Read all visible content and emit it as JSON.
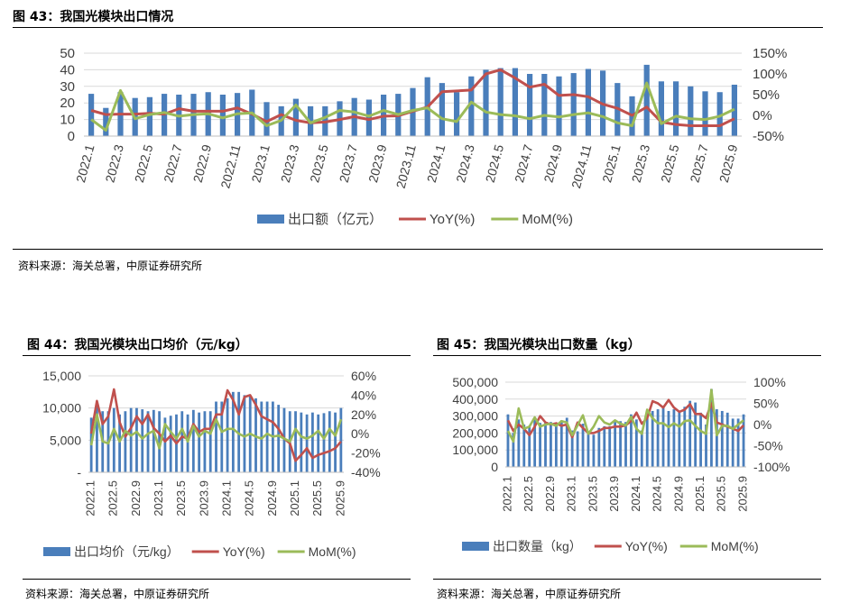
{
  "chart_data": [
    {
      "type": "bar",
      "title": "图 43：我国光模块出口情况",
      "source": "资料来源：海关总署，中原证券研究所",
      "categories": [
        "2022.1",
        "2022.2",
        "2022.3",
        "2022.4",
        "2022.5",
        "2022.6",
        "2022.7",
        "2022.8",
        "2022.9",
        "2022.10",
        "2022.11",
        "2022.12",
        "2023.1",
        "2023.2",
        "2023.3",
        "2023.4",
        "2023.5",
        "2023.6",
        "2023.7",
        "2023.8",
        "2023.9",
        "2023.10",
        "2023.11",
        "2023.12",
        "2024.1",
        "2024.2",
        "2024.3",
        "2024.4",
        "2024.5",
        "2024.6",
        "2024.7",
        "2024.8",
        "2024.9",
        "2024.10",
        "2024.11",
        "2024.12",
        "2025.1",
        "2025.2",
        "2025.3",
        "2025.4",
        "2025.5",
        "2025.6",
        "2025.7",
        "2025.8",
        "2025.9"
      ],
      "tick_labels": [
        "2022.1",
        "2022.3",
        "2022.5",
        "2022.7",
        "2022.9",
        "2022.11",
        "2023.1",
        "2023.3",
        "2023.5",
        "2023.7",
        "2023.9",
        "2023.11",
        "2024.1",
        "2024.3",
        "2024.5",
        "2024.7",
        "2024.9",
        "2024.11",
        "2025.1",
        "2025.3",
        "2025.5",
        "2025.7",
        "2025.9"
      ],
      "series": [
        {
          "name": "出口额（亿元）",
          "type": "bar",
          "axis": "left",
          "color": "#4a7ebb",
          "values": [
            25.5,
            17,
            26.5,
            23,
            23.5,
            25.5,
            25,
            25.5,
            26.5,
            25,
            26,
            28,
            20.5,
            18,
            22.5,
            18,
            18,
            21,
            23,
            22,
            25,
            25.5,
            29,
            35.5,
            32,
            26.5,
            36,
            40,
            41,
            41,
            37.5,
            37.5,
            36,
            38,
            40.5,
            39.5,
            32,
            24,
            43,
            33,
            33,
            30,
            27,
            26.5,
            31
          ]
        },
        {
          "name": "YoY(%)",
          "type": "line",
          "axis": "right",
          "color": "#c0504d",
          "values": [
            12,
            2,
            3,
            3,
            5,
            3,
            16,
            10,
            10,
            10,
            18,
            3,
            -15,
            2,
            -12,
            -18,
            -16,
            -10,
            -3,
            -10,
            -2,
            -1,
            10,
            20,
            57,
            59,
            61,
            100,
            110,
            90,
            68,
            75,
            48,
            50,
            45,
            27,
            17,
            0,
            20,
            -16,
            -22,
            -25,
            -25,
            -25,
            -8
          ]
        },
        {
          "name": "MoM(%)",
          "type": "line",
          "axis": "right",
          "color": "#9bbb59",
          "values": [
            -10,
            -36,
            60,
            -8,
            2,
            7,
            -2,
            2,
            4,
            -6,
            4,
            6,
            -25,
            -12,
            25,
            -18,
            -5,
            12,
            8,
            -2,
            12,
            2,
            12,
            18,
            -8,
            -15,
            32,
            8,
            2,
            -1,
            -8,
            0,
            -4,
            2,
            6,
            -3,
            -18,
            -25,
            78,
            -20,
            -2,
            -8,
            -10,
            -2,
            15
          ]
        }
      ],
      "ylim_left": [
        0,
        50
      ],
      "yticks_left": [
        "0",
        "10",
        "20",
        "30",
        "40",
        "50"
      ],
      "ylim_right": [
        -50,
        150
      ],
      "yticks_right": [
        "-50%",
        "0%",
        "50%",
        "100%",
        "150%"
      ],
      "legend": "bottom",
      "grid": true
    },
    {
      "type": "bar",
      "title": "图 44：我国光模块出口均价（元/kg）",
      "source": "资料来源：海关总署，中原证券研究所",
      "categories": [
        "2022.1",
        "2022.2",
        "2022.3",
        "2022.4",
        "2022.5",
        "2022.6",
        "2022.7",
        "2022.8",
        "2022.9",
        "2022.10",
        "2022.11",
        "2022.12",
        "2023.1",
        "2023.2",
        "2023.3",
        "2023.4",
        "2023.5",
        "2023.6",
        "2023.7",
        "2023.8",
        "2023.9",
        "2023.10",
        "2023.11",
        "2023.12",
        "2024.1",
        "2024.2",
        "2024.3",
        "2024.4",
        "2024.5",
        "2024.6",
        "2024.7",
        "2024.8",
        "2024.9",
        "2024.10",
        "2024.11",
        "2024.12",
        "2025.1",
        "2025.2",
        "2025.3",
        "2025.4",
        "2025.5",
        "2025.6",
        "2025.7",
        "2025.8",
        "2025.9"
      ],
      "tick_labels": [
        "2022.1",
        "2022.5",
        "2022.9",
        "2023.1",
        "2023.5",
        "2023.9",
        "2024.1",
        "2024.5",
        "2024.9",
        "2025.1",
        "2025.5",
        "2025.9"
      ],
      "series": [
        {
          "name": "出口均价（元/kg）",
          "type": "bar",
          "axis": "left",
          "color": "#4a7ebb",
          "values": [
            8500,
            10500,
            9500,
            9500,
            10000,
            9000,
            9500,
            10000,
            10000,
            9800,
            9500,
            9700,
            9500,
            8500,
            8800,
            9000,
            9500,
            9000,
            9700,
            9300,
            9500,
            9500,
            11000,
            11000,
            11500,
            12500,
            12500,
            12000,
            12000,
            11500,
            11000,
            11000,
            11000,
            10500,
            10000,
            9500,
            9500,
            9300,
            9000,
            9300,
            9000,
            9200,
            9500,
            9300,
            10000
          ]
        },
        {
          "name": "YoY(%)",
          "type": "line",
          "axis": "right",
          "color": "#c0504d",
          "values": [
            0,
            34,
            10,
            18,
            46,
            12,
            -3,
            6,
            18,
            10,
            20,
            6,
            0,
            -8,
            -2,
            -10,
            -3,
            -5,
            10,
            2,
            5,
            5,
            20,
            20,
            45,
            35,
            20,
            38,
            40,
            30,
            18,
            15,
            12,
            5,
            -5,
            -10,
            -28,
            -22,
            -15,
            -25,
            -22,
            -20,
            -18,
            -15,
            -8
          ]
        },
        {
          "name": "MoM(%)",
          "type": "line",
          "axis": "right",
          "color": "#9bbb59",
          "values": [
            -12,
            20,
            -8,
            -10,
            5,
            -8,
            3,
            -2,
            2,
            -5,
            0,
            3,
            -15,
            10,
            2,
            -5,
            5,
            -8,
            8,
            -3,
            3,
            0,
            15,
            2,
            5,
            5,
            0,
            -3,
            0,
            -3,
            -5,
            0,
            -3,
            -2,
            -5,
            -8,
            5,
            -3,
            -5,
            -2,
            3,
            -5,
            5,
            -2,
            15
          ]
        }
      ],
      "ylim_left": [
        0,
        15000
      ],
      "yticks_left": [
        "-",
        "5,000",
        "10,000",
        "15,000"
      ],
      "ylim_right": [
        -40,
        60
      ],
      "yticks_right": [
        "-40%",
        "-20%",
        "0%",
        "20%",
        "40%",
        "60%"
      ],
      "legend": "bottom",
      "grid": true
    },
    {
      "type": "bar",
      "title": "图 45：我国光模块出口数量（kg）",
      "source": "资料来源：海关总署，中原证券研究所",
      "categories": [
        "2022.1",
        "2022.2",
        "2022.3",
        "2022.4",
        "2022.5",
        "2022.6",
        "2022.7",
        "2022.8",
        "2022.9",
        "2022.10",
        "2022.11",
        "2022.12",
        "2023.1",
        "2023.2",
        "2023.3",
        "2023.4",
        "2023.5",
        "2023.6",
        "2023.7",
        "2023.8",
        "2023.9",
        "2023.10",
        "2023.11",
        "2023.12",
        "2024.1",
        "2024.2",
        "2024.3",
        "2024.4",
        "2024.5",
        "2024.6",
        "2024.7",
        "2024.8",
        "2024.9",
        "2024.10",
        "2024.11",
        "2024.12",
        "2025.1",
        "2025.2",
        "2025.3",
        "2025.4",
        "2025.5",
        "2025.6",
        "2025.7",
        "2025.8",
        "2025.9"
      ],
      "tick_labels": [
        "2022.1",
        "2022.5",
        "2022.9",
        "2023.1",
        "2023.5",
        "2023.9",
        "2024.1",
        "2024.5",
        "2024.9",
        "2025.1",
        "2025.5",
        "2025.9"
      ],
      "series": [
        {
          "name": "出口数量（kg）",
          "type": "bar",
          "axis": "left",
          "color": "#4a7ebb",
          "values": [
            310000,
            200000,
            280000,
            250000,
            240000,
            280000,
            260000,
            260000,
            265000,
            255000,
            275000,
            290000,
            215000,
            210000,
            255000,
            200000,
            190000,
            230000,
            240000,
            240000,
            265000,
            270000,
            265000,
            310000,
            280000,
            215000,
            290000,
            330000,
            340000,
            350000,
            330000,
            340000,
            325000,
            355000,
            390000,
            380000,
            320000,
            250000,
            460000,
            340000,
            330000,
            320000,
            285000,
            285000,
            310000
          ]
        },
        {
          "name": "YoY(%)",
          "type": "line",
          "axis": "right",
          "color": "#c0504d",
          "values": [
            10,
            -15,
            0,
            -10,
            -25,
            -5,
            20,
            5,
            0,
            3,
            -3,
            0,
            -30,
            5,
            -8,
            -20,
            -20,
            -15,
            -8,
            -8,
            -5,
            -5,
            -2,
            8,
            28,
            2,
            15,
            55,
            50,
            40,
            58,
            40,
            30,
            35,
            48,
            25,
            25,
            15,
            50,
            5,
            0,
            -5,
            -10,
            -15,
            -2
          ]
        },
        {
          "name": "MoM(%)",
          "type": "line",
          "axis": "right",
          "color": "#9bbb59",
          "values": [
            -15,
            -40,
            38,
            -10,
            -5,
            17,
            -5,
            0,
            2,
            -3,
            8,
            5,
            -25,
            -2,
            22,
            -22,
            -5,
            20,
            5,
            0,
            10,
            2,
            -2,
            18,
            -10,
            -22,
            35,
            15,
            3,
            3,
            -6,
            3,
            -5,
            8,
            10,
            -3,
            -15,
            -22,
            82,
            -25,
            -3,
            -3,
            -10,
            0,
            10
          ]
        }
      ],
      "ylim_left": [
        0,
        500000
      ],
      "yticks_left": [
        "0",
        "100,000",
        "200,000",
        "300,000",
        "400,000",
        "500,000"
      ],
      "ylim_right": [
        -100,
        100
      ],
      "yticks_right": [
        "-100%",
        "-50%",
        "0%",
        "50%",
        "100%"
      ],
      "legend": "bottom",
      "grid": true
    }
  ]
}
